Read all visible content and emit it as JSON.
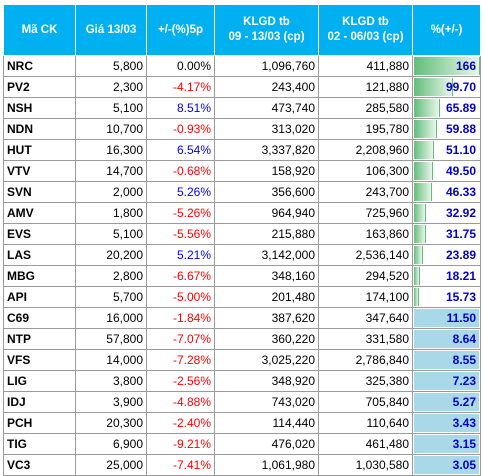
{
  "headers": {
    "code": "Mã CK",
    "price": "Giá 13/03",
    "change": "+/-(%)5p",
    "vol_now_line1": "KLGD tb",
    "vol_now_line2": "09 - 13/03 (cp)",
    "vol_prev_line1": "KLGD tb",
    "vol_prev_line2": "02 - 06/03 (cp)",
    "pct": "%(+/-)"
  },
  "colors": {
    "header_bg": "#00b0f0",
    "up": "#0000ff",
    "down": "#ff0000",
    "bar_high": "#63be7b",
    "bar_low": "#a9d9e8"
  },
  "rows": [
    {
      "code": "NRC",
      "price": "5,800",
      "change": "0.00%",
      "dir": "flat",
      "vol_now": "1,096,760",
      "vol_prev": "411,880",
      "pct": "166",
      "pct_value": 166
    },
    {
      "code": "PV2",
      "price": "2,300",
      "change": "-4.17%",
      "dir": "down",
      "vol_now": "243,400",
      "vol_prev": "121,880",
      "pct": "99.70",
      "pct_value": 99.7
    },
    {
      "code": "NSH",
      "price": "5,100",
      "change": "8.51%",
      "dir": "up",
      "vol_now": "473,740",
      "vol_prev": "285,580",
      "pct": "65.89",
      "pct_value": 65.89
    },
    {
      "code": "NDN",
      "price": "10,700",
      "change": "-0.93%",
      "dir": "down",
      "vol_now": "313,020",
      "vol_prev": "195,780",
      "pct": "59.88",
      "pct_value": 59.88
    },
    {
      "code": "HUT",
      "price": "16,300",
      "change": "6.54%",
      "dir": "up",
      "vol_now": "3,337,820",
      "vol_prev": "2,208,960",
      "pct": "51.10",
      "pct_value": 51.1
    },
    {
      "code": "VTV",
      "price": "14,700",
      "change": "-0.68%",
      "dir": "down",
      "vol_now": "158,920",
      "vol_prev": "106,300",
      "pct": "49.50",
      "pct_value": 49.5
    },
    {
      "code": "SVN",
      "price": "2,000",
      "change": "5.26%",
      "dir": "up",
      "vol_now": "356,600",
      "vol_prev": "243,700",
      "pct": "46.33",
      "pct_value": 46.33
    },
    {
      "code": "AMV",
      "price": "1,800",
      "change": "-5.26%",
      "dir": "down",
      "vol_now": "964,940",
      "vol_prev": "725,960",
      "pct": "32.92",
      "pct_value": 32.92
    },
    {
      "code": "EVS",
      "price": "5,100",
      "change": "-5.56%",
      "dir": "down",
      "vol_now": "215,880",
      "vol_prev": "163,860",
      "pct": "31.75",
      "pct_value": 31.75
    },
    {
      "code": "LAS",
      "price": "20,200",
      "change": "5.21%",
      "dir": "up",
      "vol_now": "3,142,000",
      "vol_prev": "2,536,140",
      "pct": "23.89",
      "pct_value": 23.89
    },
    {
      "code": "MBG",
      "price": "2,800",
      "change": "-6.67%",
      "dir": "down",
      "vol_now": "348,160",
      "vol_prev": "294,520",
      "pct": "18.21",
      "pct_value": 18.21
    },
    {
      "code": "API",
      "price": "5,700",
      "change": "-5.00%",
      "dir": "down",
      "vol_now": "201,480",
      "vol_prev": "174,100",
      "pct": "15.73",
      "pct_value": 15.73
    },
    {
      "code": "C69",
      "price": "16,000",
      "change": "-1.84%",
      "dir": "down",
      "vol_now": "387,620",
      "vol_prev": "347,640",
      "pct": "11.50",
      "pct_value": 11.5
    },
    {
      "code": "NTP",
      "price": "57,800",
      "change": "-7.07%",
      "dir": "down",
      "vol_now": "360,220",
      "vol_prev": "331,580",
      "pct": "8.64",
      "pct_value": 8.64
    },
    {
      "code": "VFS",
      "price": "14,000",
      "change": "-7.28%",
      "dir": "down",
      "vol_now": "3,025,220",
      "vol_prev": "2,786,840",
      "pct": "8.55",
      "pct_value": 8.55
    },
    {
      "code": "LIG",
      "price": "3,800",
      "change": "-2.56%",
      "dir": "down",
      "vol_now": "348,920",
      "vol_prev": "325,380",
      "pct": "7.23",
      "pct_value": 7.23
    },
    {
      "code": "IDJ",
      "price": "3,900",
      "change": "-4.88%",
      "dir": "down",
      "vol_now": "743,020",
      "vol_prev": "705,840",
      "pct": "5.27",
      "pct_value": 5.27
    },
    {
      "code": "PCH",
      "price": "20,300",
      "change": "-2.40%",
      "dir": "down",
      "vol_now": "114,440",
      "vol_prev": "110,640",
      "pct": "3.43",
      "pct_value": 3.43
    },
    {
      "code": "TIG",
      "price": "6,900",
      "change": "-9.21%",
      "dir": "down",
      "vol_now": "476,020",
      "vol_prev": "461,480",
      "pct": "3.15",
      "pct_value": 3.15
    },
    {
      "code": "VC3",
      "price": "25,000",
      "change": "-7.41%",
      "dir": "down",
      "vol_now": "1,061,980",
      "vol_prev": "1,030,580",
      "pct": "3.05",
      "pct_value": 3.05
    }
  ]
}
